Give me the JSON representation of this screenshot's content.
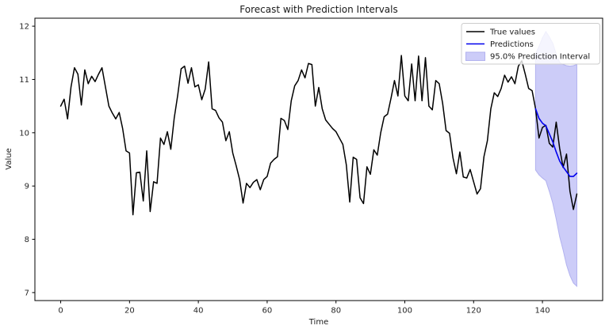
{
  "chart_data": {
    "type": "line",
    "title": "Forecast with Prediction Intervals",
    "xlabel": "Time",
    "ylabel": "Value",
    "xlim": [
      -7.5,
      157.5
    ],
    "ylim": [
      6.85,
      12.15
    ],
    "xticks": [
      0,
      20,
      40,
      60,
      80,
      100,
      120,
      140
    ],
    "yticks": [
      7,
      8,
      9,
      10,
      11,
      12
    ],
    "grid": false,
    "legend_position": "upper right",
    "colors": {
      "true_values": "#000000",
      "predictions": "#0000ee",
      "interval_fill": "#ccccf8",
      "interval_edge": "#b2b2ef",
      "spine": "#000000",
      "tick_text": "#262626",
      "legend_border": "#cccccc"
    },
    "series": [
      {
        "name": "True values",
        "kind": "line",
        "x_start": 0,
        "x_step": 1,
        "values": [
          10.5,
          10.63,
          10.26,
          10.86,
          11.22,
          11.1,
          10.52,
          11.18,
          10.92,
          11.06,
          10.96,
          11.1,
          11.22,
          10.86,
          10.5,
          10.37,
          10.26,
          10.38,
          10.08,
          9.66,
          9.62,
          8.46,
          9.25,
          9.26,
          8.72,
          9.66,
          8.52,
          9.08,
          9.05,
          9.9,
          9.78,
          10.02,
          9.69,
          10.28,
          10.7,
          11.2,
          11.25,
          10.93,
          11.22,
          10.86,
          10.9,
          10.62,
          10.82,
          11.33,
          10.45,
          10.42,
          10.28,
          10.2,
          9.85,
          10.02,
          9.62,
          9.38,
          9.12,
          8.68,
          9.05,
          8.97,
          9.07,
          9.12,
          8.93,
          9.12,
          9.18,
          9.43,
          9.5,
          9.55,
          10.27,
          10.23,
          10.06,
          10.6,
          10.88,
          10.98,
          11.18,
          11.03,
          11.3,
          11.28,
          10.5,
          10.85,
          10.45,
          10.24,
          10.16,
          10.08,
          10.02,
          9.9,
          9.78,
          9.4,
          8.7,
          9.54,
          9.5,
          8.78,
          8.67,
          9.36,
          9.22,
          9.68,
          9.58,
          10.0,
          10.3,
          10.35,
          10.65,
          10.98,
          10.69,
          11.45,
          10.69,
          10.6,
          11.29,
          10.6,
          11.44,
          10.6,
          11.41,
          10.5,
          10.43,
          10.98,
          10.92,
          10.55,
          10.04,
          9.99,
          9.53,
          9.23,
          9.64,
          9.17,
          9.15,
          9.31,
          9.08,
          8.85,
          8.95,
          9.55,
          9.85,
          10.45,
          10.75,
          10.68,
          10.83,
          11.08,
          10.95,
          11.05,
          10.92,
          11.25,
          11.35,
          11.1,
          10.83,
          10.79,
          10.45,
          9.9,
          10.1,
          10.14,
          9.8,
          9.73,
          10.2,
          9.71,
          9.35,
          9.6,
          8.9,
          8.56,
          8.85
        ]
      },
      {
        "name": "Predictions",
        "kind": "line",
        "x_start": 138,
        "x_step": 1,
        "values": [
          10.45,
          10.27,
          10.18,
          10.13,
          9.98,
          9.83,
          9.64,
          9.47,
          9.36,
          9.27,
          9.18,
          9.18,
          9.24
        ]
      },
      {
        "name": "95.0% Prediction Interval",
        "kind": "band",
        "x_start": 138,
        "x_step": 1,
        "upper": [
          11.48,
          11.62,
          11.78,
          11.9,
          11.8,
          11.68,
          11.48,
          11.32,
          11.28,
          11.26,
          11.25,
          11.26,
          11.28
        ],
        "lower": [
          9.3,
          9.21,
          9.15,
          9.1,
          8.9,
          8.68,
          8.38,
          8.05,
          7.8,
          7.52,
          7.32,
          7.18,
          7.12
        ]
      }
    ]
  }
}
